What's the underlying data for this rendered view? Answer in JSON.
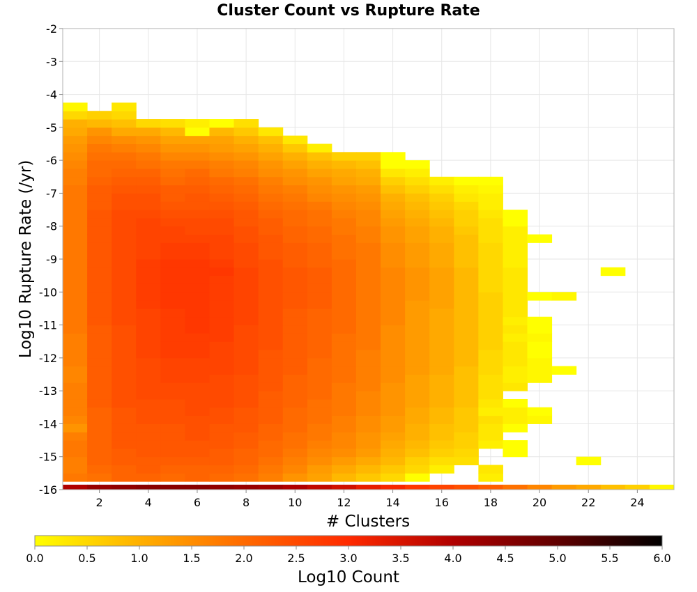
{
  "chart_data": {
    "type": "heatmap",
    "title": "Cluster Count vs Rupture Rate",
    "xlabel": "# Clusters",
    "ylabel": "Log10 Rupture Rate (/yr)",
    "xlim": [
      0.5,
      25.5
    ],
    "ylim": [
      -16,
      -2
    ],
    "x_ticks": [
      "2",
      "4",
      "6",
      "8",
      "10",
      "12",
      "14",
      "16",
      "18",
      "20",
      "22",
      "24"
    ],
    "y_ticks": [
      "-2",
      "-3",
      "-4",
      "-5",
      "-6",
      "-7",
      "-8",
      "-9",
      "-10",
      "-11",
      "-12",
      "-13",
      "-14",
      "-15",
      "-16"
    ],
    "grid": true,
    "bin_width_x": 1,
    "bin_height_y": 0.25,
    "colorbar": {
      "label": "Log10 Count",
      "range": [
        0,
        6
      ],
      "ticks": [
        "0.0",
        "0.5",
        "1.0",
        "1.5",
        "2.0",
        "2.5",
        "3.0",
        "3.5",
        "4.0",
        "4.5",
        "5.0",
        "5.5",
        "6.0"
      ],
      "colors": [
        "#ffff00",
        "#ffa200",
        "#ff2a00",
        "#8b0000",
        "#000000"
      ]
    },
    "value_description": "Log10 count per bin; columns are # clusters 1-25, listed for y bins from low to high rupture rate",
    "columns": [
      {
        "x": 1,
        "ylow": -16,
        "values": [
          4.0,
          1.8,
          1.7,
          1.7,
          1.8,
          1.8,
          1.7,
          1.4,
          1.6,
          1.7,
          1.7,
          1.7,
          1.7,
          1.6,
          1.6,
          1.7,
          1.7,
          1.7,
          1.7,
          1.8,
          1.8,
          1.8,
          1.8,
          1.8,
          1.8,
          1.8,
          1.8,
          1.8,
          1.8,
          1.8,
          1.8,
          1.8,
          1.8,
          1.8,
          1.8,
          1.8,
          1.8,
          1.7,
          1.7,
          1.6,
          1.5,
          1.4,
          1.3,
          1.1,
          1.0,
          0.5,
          0.1
        ]
      },
      {
        "x": 2,
        "ylow": -16,
        "values": [
          4.3,
          1.9,
          2.0,
          2.1,
          2.1,
          2.1,
          2.1,
          2.1,
          2.1,
          2.1,
          2.2,
          2.2,
          2.2,
          2.2,
          2.2,
          2.2,
          2.2,
          2.2,
          2.2,
          2.2,
          2.3,
          2.3,
          2.3,
          2.3,
          2.3,
          2.3,
          2.3,
          2.3,
          2.3,
          2.3,
          2.3,
          2.3,
          2.3,
          2.3,
          2.2,
          2.2,
          2.2,
          2.1,
          2.0,
          2.0,
          1.9,
          1.8,
          1.6,
          1.4,
          0.9,
          0.6
        ]
      },
      {
        "x": 3,
        "ylow": -16,
        "values": [
          4.4,
          2.1,
          2.1,
          2.2,
          2.2,
          2.3,
          2.3,
          2.3,
          2.3,
          2.3,
          2.4,
          2.4,
          2.4,
          2.4,
          2.4,
          2.4,
          2.4,
          2.4,
          2.4,
          2.4,
          2.5,
          2.5,
          2.5,
          2.5,
          2.5,
          2.5,
          2.5,
          2.5,
          2.5,
          2.5,
          2.5,
          2.5,
          2.5,
          2.5,
          2.4,
          2.4,
          2.3,
          2.2,
          2.1,
          2.0,
          1.9,
          1.7,
          1.5,
          1.1,
          0.8,
          0.5,
          0.3
        ]
      },
      {
        "x": 4,
        "ylow": -16,
        "values": [
          4.5,
          2.1,
          2.2,
          2.2,
          2.3,
          2.3,
          2.3,
          2.3,
          2.4,
          2.4,
          2.4,
          2.5,
          2.5,
          2.5,
          2.5,
          2.5,
          2.6,
          2.6,
          2.6,
          2.6,
          2.6,
          2.6,
          2.7,
          2.7,
          2.7,
          2.7,
          2.7,
          2.7,
          2.6,
          2.6,
          2.6,
          2.6,
          2.6,
          2.5,
          2.4,
          2.4,
          2.3,
          2.2,
          2.1,
          1.9,
          1.8,
          1.6,
          1.4,
          1.1,
          0.5
        ]
      },
      {
        "x": 5,
        "ylow": -16,
        "values": [
          4.5,
          2.0,
          2.1,
          2.2,
          2.3,
          2.3,
          2.3,
          2.3,
          2.4,
          2.4,
          2.4,
          2.5,
          2.5,
          2.6,
          2.6,
          2.6,
          2.7,
          2.7,
          2.7,
          2.7,
          2.7,
          2.7,
          2.8,
          2.8,
          2.8,
          2.8,
          2.8,
          2.8,
          2.7,
          2.7,
          2.6,
          2.6,
          2.5,
          2.4,
          2.3,
          2.2,
          2.2,
          2.0,
          1.9,
          1.8,
          1.6,
          1.4,
          1.2,
          0.9,
          0.4
        ]
      },
      {
        "x": 6,
        "ylow": -16,
        "values": [
          4.5,
          2.1,
          2.1,
          2.2,
          2.3,
          2.3,
          2.4,
          2.4,
          2.4,
          2.5,
          2.5,
          2.5,
          2.5,
          2.6,
          2.6,
          2.6,
          2.7,
          2.7,
          2.7,
          2.8,
          2.8,
          2.8,
          2.8,
          2.8,
          2.8,
          2.8,
          2.8,
          2.8,
          2.7,
          2.7,
          2.6,
          2.5,
          2.5,
          2.4,
          2.3,
          2.3,
          2.2,
          2.1,
          2.0,
          1.8,
          1.6,
          1.4,
          1.2,
          0.0,
          0.2
        ]
      },
      {
        "x": 7,
        "ylow": -16,
        "values": [
          4.4,
          2.0,
          2.1,
          2.2,
          2.2,
          2.3,
          2.3,
          2.3,
          2.4,
          2.4,
          2.5,
          2.5,
          2.5,
          2.5,
          2.6,
          2.6,
          2.6,
          2.6,
          2.7,
          2.7,
          2.7,
          2.7,
          2.7,
          2.7,
          2.7,
          2.7,
          2.8,
          2.7,
          2.6,
          2.6,
          2.6,
          2.5,
          2.5,
          2.4,
          2.3,
          2.2,
          2.1,
          2.0,
          1.8,
          1.7,
          1.5,
          1.3,
          1.2,
          0.9,
          0.0
        ]
      },
      {
        "x": 8,
        "ylow": -16,
        "values": [
          4.3,
          1.9,
          2.0,
          2.1,
          2.1,
          2.2,
          2.2,
          2.3,
          2.3,
          2.3,
          2.4,
          2.4,
          2.4,
          2.4,
          2.5,
          2.5,
          2.5,
          2.5,
          2.5,
          2.5,
          2.6,
          2.6,
          2.6,
          2.6,
          2.6,
          2.6,
          2.6,
          2.5,
          2.5,
          2.5,
          2.4,
          2.4,
          2.3,
          2.3,
          2.2,
          2.1,
          2.0,
          1.9,
          1.7,
          1.6,
          1.4,
          1.2,
          1.0,
          0.7,
          0.4
        ]
      },
      {
        "x": 9,
        "ylow": -16,
        "values": [
          4.2,
          1.7,
          1.8,
          1.9,
          2.0,
          2.0,
          2.1,
          2.1,
          2.2,
          2.2,
          2.2,
          2.2,
          2.3,
          2.3,
          2.3,
          2.3,
          2.3,
          2.4,
          2.4,
          2.4,
          2.4,
          2.4,
          2.4,
          2.4,
          2.4,
          2.4,
          2.4,
          2.4,
          2.3,
          2.3,
          2.3,
          2.2,
          2.2,
          2.1,
          2.0,
          1.9,
          1.8,
          1.7,
          1.5,
          1.4,
          1.2,
          1.0,
          0.8,
          0.3
        ]
      },
      {
        "x": 10,
        "ylow": -16,
        "values": [
          4.0,
          1.4,
          1.6,
          1.7,
          1.8,
          1.9,
          1.9,
          2.0,
          2.0,
          2.0,
          2.1,
          2.1,
          2.1,
          2.1,
          2.2,
          2.2,
          2.2,
          2.2,
          2.2,
          2.2,
          2.2,
          2.2,
          2.3,
          2.3,
          2.3,
          2.3,
          2.3,
          2.2,
          2.2,
          2.2,
          2.1,
          2.1,
          2.0,
          2.0,
          1.9,
          1.8,
          1.7,
          1.5,
          1.4,
          1.2,
          1.0,
          0.7,
          0.3
        ]
      },
      {
        "x": 11,
        "ylow": -16,
        "values": [
          3.8,
          1.2,
          1.3,
          1.5,
          1.6,
          1.7,
          1.8,
          1.8,
          1.9,
          1.9,
          1.9,
          2.0,
          2.0,
          2.0,
          2.0,
          2.0,
          2.1,
          2.1,
          2.1,
          2.1,
          2.1,
          2.1,
          2.2,
          2.2,
          2.2,
          2.2,
          2.2,
          2.1,
          2.1,
          2.1,
          2.0,
          2.0,
          1.9,
          1.9,
          1.8,
          1.6,
          1.5,
          1.4,
          1.2,
          1.0,
          0.8,
          0.2
        ]
      },
      {
        "x": 12,
        "ylow": -16,
        "values": [
          3.6,
          0.9,
          1.1,
          1.3,
          1.5,
          1.6,
          1.6,
          1.7,
          1.7,
          1.8,
          1.8,
          1.8,
          1.8,
          1.9,
          1.9,
          1.9,
          1.9,
          1.9,
          1.9,
          2.0,
          2.0,
          2.0,
          2.0,
          2.0,
          2.0,
          2.0,
          2.0,
          2.0,
          1.9,
          1.9,
          1.9,
          1.8,
          1.8,
          1.7,
          1.6,
          1.5,
          1.4,
          1.2,
          1.1,
          0.9,
          0.6
        ]
      },
      {
        "x": 13,
        "ylow": -16,
        "values": [
          3.3,
          0.7,
          0.9,
          1.1,
          1.3,
          1.4,
          1.4,
          1.5,
          1.5,
          1.6,
          1.6,
          1.6,
          1.7,
          1.7,
          1.7,
          1.7,
          1.7,
          1.8,
          1.8,
          1.8,
          1.8,
          1.8,
          1.8,
          1.8,
          1.8,
          1.8,
          1.8,
          1.8,
          1.8,
          1.8,
          1.7,
          1.7,
          1.6,
          1.6,
          1.5,
          1.4,
          1.3,
          1.1,
          1.0,
          0.8,
          0.6
        ]
      },
      {
        "x": 14,
        "ylow": -16,
        "values": [
          3.1,
          0.5,
          0.7,
          0.9,
          1.0,
          1.1,
          1.2,
          1.3,
          1.3,
          1.4,
          1.4,
          1.4,
          1.4,
          1.5,
          1.5,
          1.5,
          1.5,
          1.5,
          1.5,
          1.5,
          1.6,
          1.6,
          1.6,
          1.6,
          1.6,
          1.6,
          1.6,
          1.5,
          1.5,
          1.5,
          1.4,
          1.4,
          1.3,
          1.2,
          1.1,
          1.0,
          0.8,
          0.6,
          0.3,
          0.0,
          0.0
        ]
      },
      {
        "x": 15,
        "ylow": -16,
        "values": [
          2.8,
          0.0,
          0.5,
          0.6,
          0.8,
          0.9,
          1.0,
          1.0,
          1.1,
          1.1,
          1.2,
          1.2,
          1.2,
          1.2,
          1.3,
          1.3,
          1.3,
          1.3,
          1.3,
          1.3,
          1.3,
          1.3,
          1.3,
          1.4,
          1.4,
          1.4,
          1.4,
          1.3,
          1.3,
          1.3,
          1.2,
          1.2,
          1.1,
          1.0,
          0.9,
          0.8,
          0.6,
          0.4,
          0.2,
          0.0
        ]
      },
      {
        "x": 16,
        "ylow": -16,
        "values": [
          2.6,
          null,
          0.2,
          0.4,
          0.6,
          0.7,
          0.8,
          0.8,
          0.9,
          0.9,
          1.0,
          1.0,
          1.0,
          1.0,
          1.1,
          1.1,
          1.1,
          1.1,
          1.1,
          1.1,
          1.1,
          1.1,
          1.2,
          1.2,
          1.2,
          1.2,
          1.2,
          1.1,
          1.1,
          1.1,
          1.0,
          1.0,
          0.9,
          0.8,
          0.7,
          0.6,
          0.4,
          0.2
        ]
      },
      {
        "x": 17,
        "ylow": -16,
        "values": [
          2.4,
          null,
          null,
          0.4,
          0.5,
          0.6,
          0.6,
          0.7,
          0.7,
          0.7,
          0.8,
          0.8,
          0.8,
          0.8,
          0.8,
          0.9,
          0.9,
          0.9,
          0.9,
          0.9,
          0.9,
          0.9,
          0.9,
          0.9,
          0.9,
          0.9,
          0.9,
          0.8,
          0.8,
          0.8,
          0.8,
          0.7,
          0.6,
          0.6,
          0.5,
          0.3,
          0.2,
          0.0
        ]
      },
      {
        "x": 18,
        "ylow": -16,
        "values": [
          2.2,
          0.2,
          0.3,
          null,
          null,
          0.2,
          0.3,
          0.3,
          0.4,
          0.2,
          0.3,
          0.4,
          0.4,
          0.4,
          0.5,
          0.5,
          0.5,
          0.6,
          0.6,
          0.6,
          0.6,
          0.6,
          0.6,
          0.6,
          0.5,
          0.5,
          0.5,
          0.5,
          0.5,
          0.5,
          0.4,
          0.4,
          0.4,
          0.3,
          0.2,
          0.2,
          0.1,
          0.0
        ]
      },
      {
        "x": 19,
        "ylow": -16,
        "values": [
          1.9,
          null,
          null,
          null,
          0.0,
          0.0,
          null,
          0.0,
          0.2,
          0.2,
          0.0,
          null,
          0.3,
          0.2,
          0.2,
          0.3,
          0.3,
          0.3,
          0.2,
          0.3,
          0.2,
          0.3,
          0.3,
          0.3,
          0.3,
          0.3,
          0.3,
          0.2,
          0.2,
          0.2,
          0.2,
          0.2,
          0.0,
          0.0
        ]
      },
      {
        "x": 20,
        "ylow": -16,
        "values": [
          1.6,
          null,
          null,
          null,
          null,
          null,
          null,
          null,
          0.1,
          0.0,
          null,
          null,
          null,
          0.1,
          0.1,
          0.1,
          0.0,
          0.0,
          0.1,
          0.0,
          0.0,
          null,
          null,
          0.0,
          null,
          null,
          null,
          null,
          null,
          null,
          0.0
        ]
      },
      {
        "x": 21,
        "ylow": -16,
        "values": [
          1.3,
          null,
          null,
          null,
          null,
          null,
          null,
          null,
          null,
          null,
          null,
          null,
          null,
          null,
          0.0,
          null,
          null,
          null,
          null,
          null,
          null,
          null,
          null,
          0.1,
          null,
          null,
          null,
          null,
          null,
          null,
          null,
          null,
          null,
          null,
          null
        ]
      },
      {
        "x": 22,
        "ylow": -16,
        "values": [
          1.1,
          null,
          null,
          0.0
        ]
      },
      {
        "x": 23,
        "ylow": -16,
        "values": [
          0.8,
          null,
          null,
          null,
          null,
          null,
          null,
          null,
          null,
          null,
          null,
          null,
          null,
          null,
          null,
          null,
          null,
          null,
          null,
          null,
          null,
          null,
          null,
          null,
          null,
          null,
          0.0
        ]
      },
      {
        "x": 24,
        "ylow": -16,
        "values": [
          0.6
        ]
      },
      {
        "x": 25,
        "ylow": -16,
        "values": [
          0.1
        ]
      }
    ]
  }
}
